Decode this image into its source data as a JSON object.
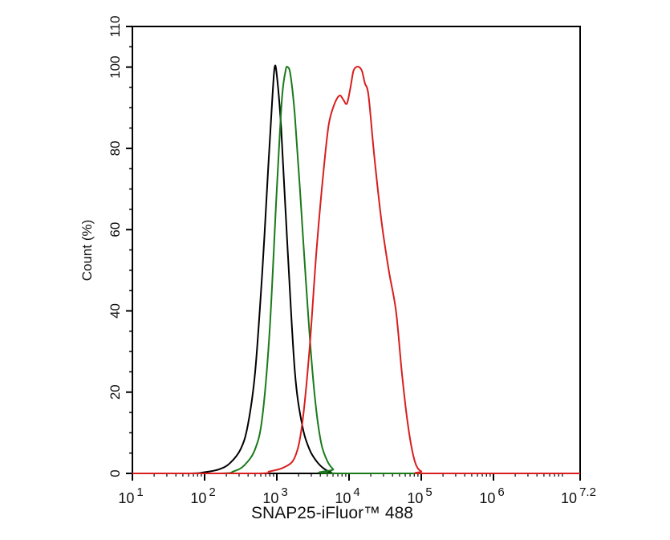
{
  "chart_data": {
    "type": "line",
    "title": "",
    "xlabel": "SNAP25-iFluor™ 488",
    "ylabel": "Count  (%)",
    "x_scale": "log10",
    "xlim_log10": [
      1,
      7.2
    ],
    "ylim": [
      0,
      110
    ],
    "grid": false,
    "legend": null,
    "x_ticks": [
      {
        "base": "10",
        "exp": "1",
        "value_log10": 1
      },
      {
        "base": "10",
        "exp": "2",
        "value_log10": 2
      },
      {
        "base": "10",
        "exp": "3",
        "value_log10": 3
      },
      {
        "base": "10",
        "exp": "4",
        "value_log10": 4
      },
      {
        "base": "10",
        "exp": "5",
        "value_log10": 5
      },
      {
        "base": "10",
        "exp": "6",
        "value_log10": 6
      },
      {
        "base": "10",
        "exp": "7.2",
        "value_log10": 7.2
      }
    ],
    "y_ticks": [
      0,
      20,
      40,
      60,
      80,
      100,
      110
    ],
    "series": [
      {
        "name": "black",
        "color": "#000000",
        "x_log10": [
          1.0,
          1.8,
          2.0,
          2.2,
          2.35,
          2.5,
          2.6,
          2.7,
          2.8,
          2.88,
          2.94,
          2.97,
          3.0,
          3.06,
          3.15,
          3.25,
          3.35,
          3.45,
          3.55,
          3.65,
          3.75,
          3.85,
          7.2
        ],
        "y": [
          0,
          0,
          0.3,
          1,
          2.5,
          6,
          12,
          25,
          50,
          75,
          93,
          100,
          98,
          85,
          55,
          25,
          12,
          6,
          3,
          1.2,
          0.3,
          0,
          0
        ]
      },
      {
        "name": "green",
        "color": "#1a7a1a",
        "x_log10": [
          1.0,
          2.2,
          2.4,
          2.55,
          2.7,
          2.8,
          2.9,
          3.0,
          3.07,
          3.12,
          3.15,
          3.19,
          3.25,
          3.32,
          3.4,
          3.48,
          3.55,
          3.62,
          3.7,
          3.78,
          3.85,
          7.2
        ],
        "y": [
          0,
          0,
          0.5,
          2,
          6,
          14,
          35,
          70,
          92,
          99,
          100,
          98,
          88,
          70,
          48,
          28,
          15,
          7,
          3,
          1,
          0,
          0
        ]
      },
      {
        "name": "red",
        "color": "#d81e1e",
        "x_log10": [
          1.0,
          2.7,
          2.9,
          3.1,
          3.25,
          3.35,
          3.45,
          3.55,
          3.65,
          3.72,
          3.8,
          3.87,
          3.92,
          3.97,
          4.02,
          4.06,
          4.1,
          4.14,
          4.18,
          4.22,
          4.27,
          4.35,
          4.45,
          4.55,
          4.65,
          4.73,
          4.8,
          4.87,
          4.93,
          5.0,
          5.1,
          7.2
        ],
        "y": [
          0,
          0,
          0.5,
          1.5,
          4,
          12,
          30,
          55,
          75,
          86,
          91,
          93,
          92,
          91,
          95,
          99,
          100,
          100,
          99,
          96,
          93,
          78,
          62,
          50,
          40,
          25,
          14,
          6,
          2,
          0.5,
          0,
          0
        ]
      }
    ]
  },
  "axes": {
    "frame_color": "#000000"
  }
}
